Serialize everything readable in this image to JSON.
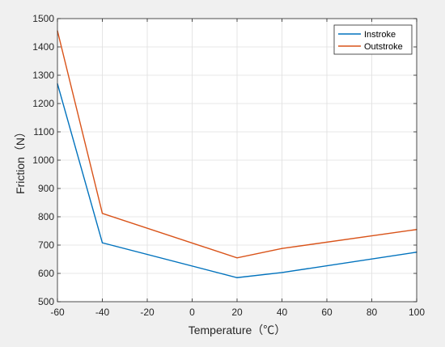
{
  "chart_data": {
    "type": "line",
    "title": "",
    "xlabel": "Temperature（℃）",
    "ylabel": "Friction（N）",
    "xlim": [
      -60,
      100
    ],
    "ylim": [
      500,
      1500
    ],
    "xticks": [
      -60,
      -40,
      -20,
      0,
      20,
      40,
      60,
      80,
      100
    ],
    "yticks": [
      500,
      600,
      700,
      800,
      900,
      1000,
      1100,
      1200,
      1300,
      1400,
      1500
    ],
    "grid": true,
    "legend_position": "top-right",
    "series": [
      {
        "name": "Instroke",
        "color": "#0072BD",
        "x": [
          -60,
          -40,
          20,
          40,
          100
        ],
        "y": [
          1270,
          708,
          585,
          603,
          675
        ]
      },
      {
        "name": "Outstroke",
        "color": "#D95319",
        "x": [
          -60,
          -40,
          20,
          40,
          100
        ],
        "y": [
          1457,
          812,
          655,
          688,
          755
        ]
      }
    ]
  }
}
